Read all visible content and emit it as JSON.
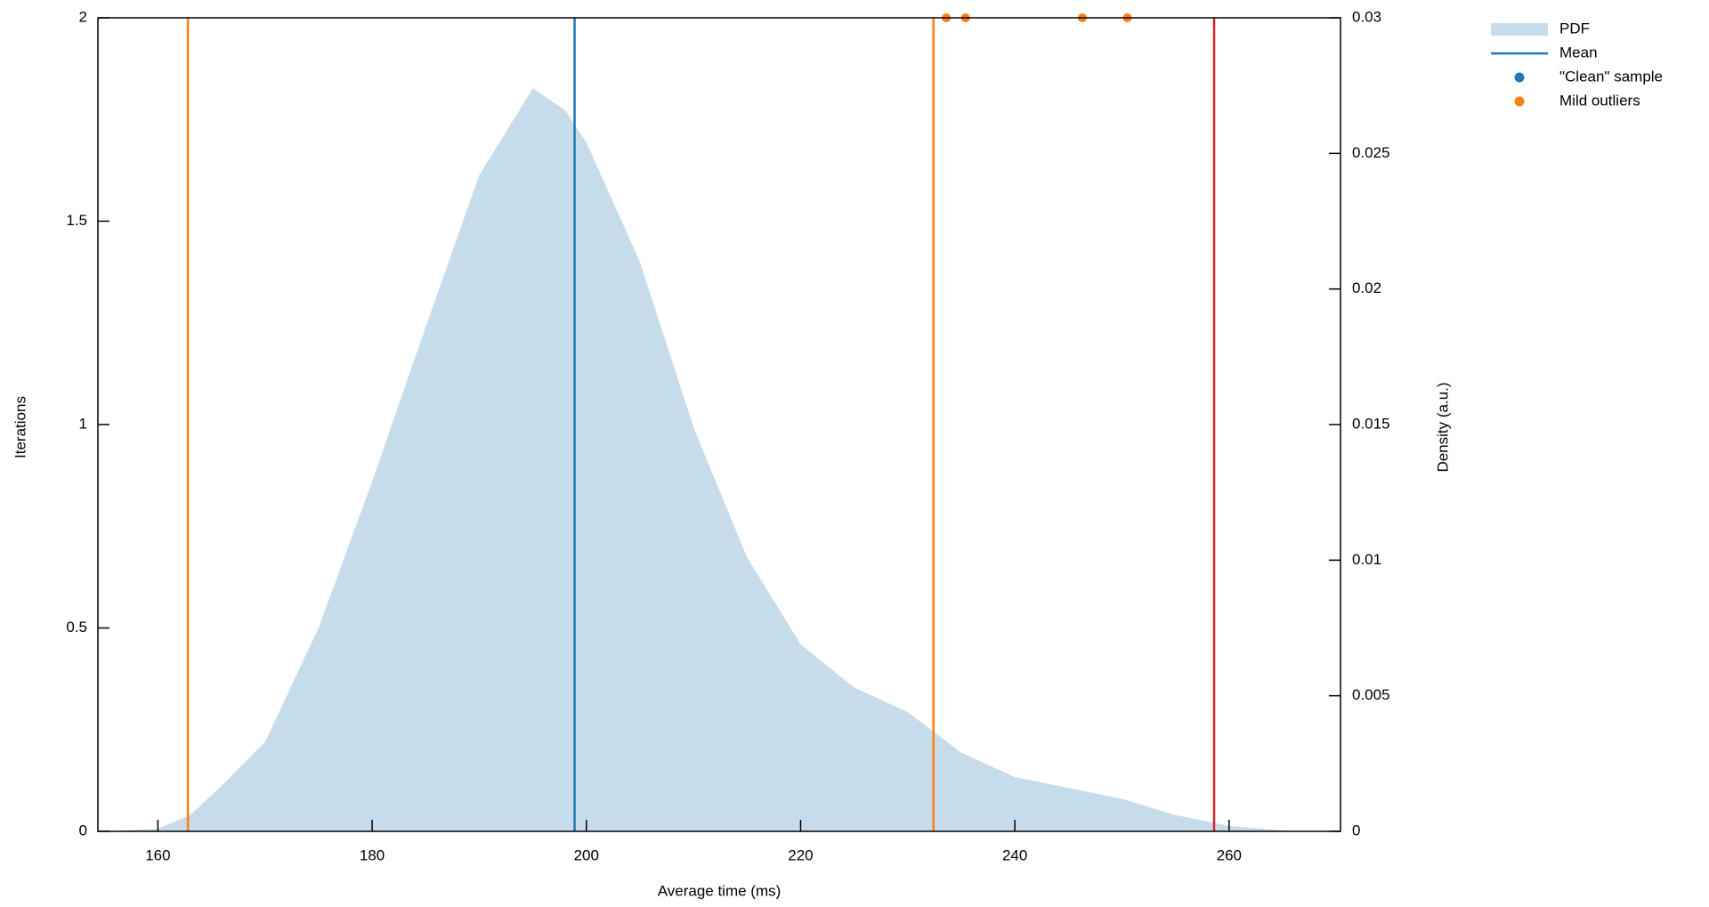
{
  "chart_data": {
    "type": "density",
    "x_label": "Average time (ms)",
    "y_label": "Iterations",
    "y2_label": "Density (a.u.)",
    "xlim": [
      154.4,
      270.4
    ],
    "xticks": [
      160,
      180,
      200,
      220,
      240,
      260
    ],
    "ylim": [
      0,
      2
    ],
    "yticks": [
      0,
      0.5,
      1,
      1.5,
      2
    ],
    "y2lim": [
      0,
      0.03
    ],
    "y2ticks": [
      0,
      0.005,
      0.01,
      0.015,
      0.02,
      0.025,
      0.03
    ],
    "legend": "outside-right",
    "series": [
      {
        "name": "PDF",
        "color": "#c6dcea",
        "axis": "y2",
        "x": [
          155.5,
          160,
          163,
          166,
          170,
          175,
          180,
          185,
          190,
          195,
          198,
          200,
          205,
          210,
          215,
          220,
          225,
          230,
          235,
          240,
          245,
          250,
          255,
          260,
          266
        ],
        "values": [
          0,
          0.0001,
          0.0006,
          0.0017,
          0.0033,
          0.0075,
          0.0129,
          0.0186,
          0.0242,
          0.0274,
          0.0266,
          0.0254,
          0.021,
          0.0149,
          0.0101,
          0.0069,
          0.0053,
          0.0044,
          0.0029,
          0.002,
          0.0016,
          0.0012,
          0.0006,
          0.0002,
          0
        ]
      },
      {
        "name": "Mean",
        "color": "#1f77b4",
        "x": [
          198.9
        ]
      },
      {
        "name": "\"Clean\" sample",
        "color": "#1f77b4",
        "x": [],
        "values": []
      },
      {
        "name": "Mild outliers",
        "color": "#ff7f0e",
        "x": [
          233.6,
          235.4,
          246.3,
          250.5
        ],
        "values": [
          2,
          2,
          2,
          2
        ]
      }
    ],
    "vlines": [
      {
        "x": 162.8,
        "color": "#ff7f0e"
      },
      {
        "x": 232.4,
        "color": "#ff7f0e"
      },
      {
        "x": 258.6,
        "color": "#d62728"
      }
    ]
  }
}
